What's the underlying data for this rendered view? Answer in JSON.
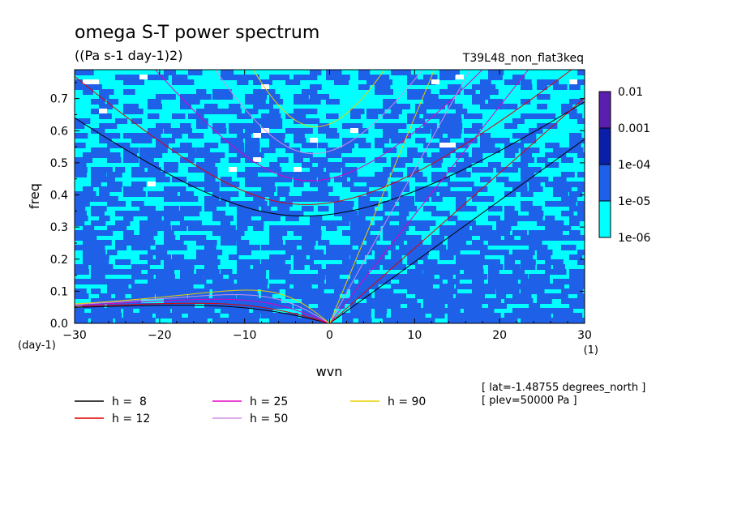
{
  "header": {
    "title": "omega S-T power spectrum",
    "units": "((Pa s-1 day-1)2)",
    "run_name": "T39L48_non_flat3keq"
  },
  "meta": {
    "lat": "[ lat=-1.48755 degrees_north ]",
    "plev": "[ plev=50000 Pa ]"
  },
  "axis_labels": {
    "x_unit_corner": "(1)",
    "y_unit_corner": "(day-1)"
  },
  "colorbar": {
    "labels": [
      "0.01",
      "0.001",
      "1e-04",
      "1e-05",
      "1e-06"
    ],
    "colors": [
      "#5b1fb0",
      "#0a1fa8",
      "#1e60e8",
      "#00ffff"
    ]
  },
  "legend": {
    "items": [
      {
        "label": "h =  8",
        "color": "#000000"
      },
      {
        "label": "h = 12",
        "color": "#e00000"
      },
      {
        "label": "h = 25",
        "color": "#e000c0"
      },
      {
        "label": "h = 50",
        "color": "#d090e0"
      },
      {
        "label": "h = 90",
        "color": "#e8d000"
      }
    ]
  },
  "chart_data": {
    "type": "heatmap",
    "title": "omega S-T power spectrum",
    "xlabel": "wvn",
    "ylabel": "freq",
    "xlim": [
      -30,
      30
    ],
    "ylim": [
      0,
      0.79
    ],
    "xticks": [
      -30,
      -20,
      -10,
      0,
      10,
      20,
      30
    ],
    "yticks": [
      0.0,
      0.1,
      0.2,
      0.3,
      0.4,
      0.5,
      0.6,
      0.7
    ],
    "color_levels": [
      1e-06,
      1e-05,
      0.0001,
      0.001,
      0.01
    ],
    "series": [
      {
        "name": "h =  8",
        "color": "#000000",
        "h": 8
      },
      {
        "name": "h = 12",
        "color": "#e00000",
        "h": 12
      },
      {
        "name": "h = 25",
        "color": "#e000c0",
        "h": 25
      },
      {
        "name": "h = 50",
        "color": "#d090e0",
        "h": 50
      },
      {
        "name": "h = 90",
        "color": "#e8d000",
        "h": 90
      }
    ]
  }
}
